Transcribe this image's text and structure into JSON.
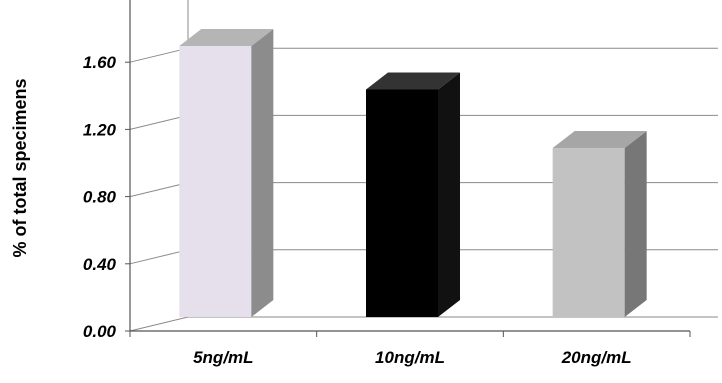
{
  "chart_data": {
    "type": "bar",
    "title": "",
    "xlabel": "",
    "ylabel": "% of total specimens",
    "categories": [
      "5ng/mL",
      "10ng/mL",
      "20ng/mL"
    ],
    "values": [
      1.62,
      1.36,
      1.01
    ],
    "ylim": [
      0,
      1.6
    ],
    "yticks": [
      "0.00",
      "0.40",
      "0.80",
      "1.20",
      "1.60"
    ],
    "ytick_values": [
      0,
      0.4,
      0.8,
      1.2,
      1.6
    ],
    "grid": true,
    "three_d": true,
    "bar_colors": [
      {
        "front": "#e6e0ed",
        "side": "#8c8c8c",
        "top": "#b5b5b5"
      },
      {
        "front": "#000000",
        "side": "#111111",
        "top": "#333333"
      },
      {
        "front": "#c2c2c2",
        "side": "#777777",
        "top": "#a6a6a6"
      }
    ]
  }
}
